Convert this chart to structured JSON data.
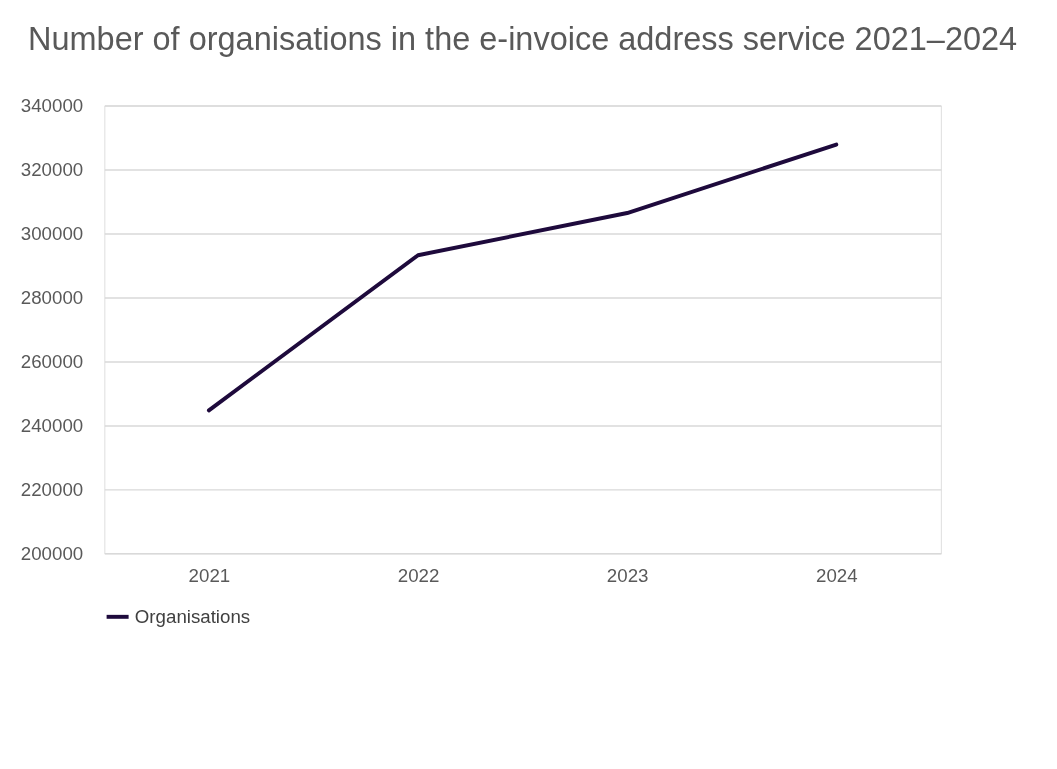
{
  "chart_data": {
    "type": "line",
    "title": "Number of organisations in the e-invoice address service 2021–2024",
    "categories": [
      "2021",
      "2022",
      "2023",
      "2024"
    ],
    "series": [
      {
        "name": "Organisations",
        "color": "#1e0a3c",
        "values": [
          244700,
          293200,
          306400,
          327800
        ]
      }
    ],
    "ylim": [
      200000,
      340000
    ],
    "yticks": [
      200000,
      220000,
      240000,
      260000,
      280000,
      300000,
      320000,
      340000
    ],
    "grid": "y",
    "legend": "bottom",
    "marker": "none",
    "line_style": "solid"
  }
}
